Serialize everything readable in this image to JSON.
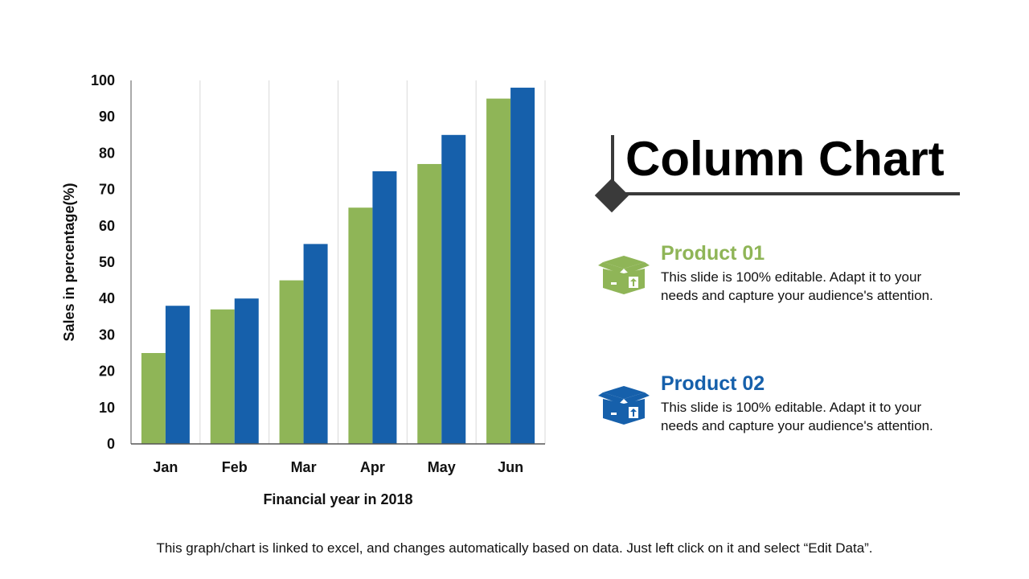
{
  "slide": {
    "title": "Column Chart",
    "footer": "This graph/chart is linked to excel, and changes automatically based on data. Just left click on it and select “Edit Data”."
  },
  "legend": [
    {
      "name": "Product 01",
      "description": "This slide is 100% editable. Adapt it to your needs and capture your audience's attention.",
      "color": "#8fb557",
      "icon": "box-icon"
    },
    {
      "name": "Product 02",
      "description": "This slide is 100% editable. Adapt it to your needs and capture your audience's attention.",
      "color": "#1660ab",
      "icon": "box-icon"
    }
  ],
  "chart_data": {
    "type": "bar",
    "title": "Column Chart",
    "categories": [
      "Jan",
      "Feb",
      "Mar",
      "Apr",
      "May",
      "Jun"
    ],
    "series": [
      {
        "name": "Product 01",
        "values": [
          25,
          37,
          45,
          65,
          77,
          95
        ],
        "color": "#8fb557"
      },
      {
        "name": "Product 02",
        "values": [
          38,
          40,
          55,
          75,
          85,
          98
        ],
        "color": "#1660ab"
      }
    ],
    "xlabel": "Financial year in 2018",
    "ylabel": "Sales in percentage(%)",
    "ylim": [
      0,
      100
    ],
    "yticks": [
      0,
      10,
      20,
      30,
      40,
      50,
      60,
      70,
      80,
      90,
      100
    ],
    "grid": "vertical",
    "legend": "right"
  }
}
